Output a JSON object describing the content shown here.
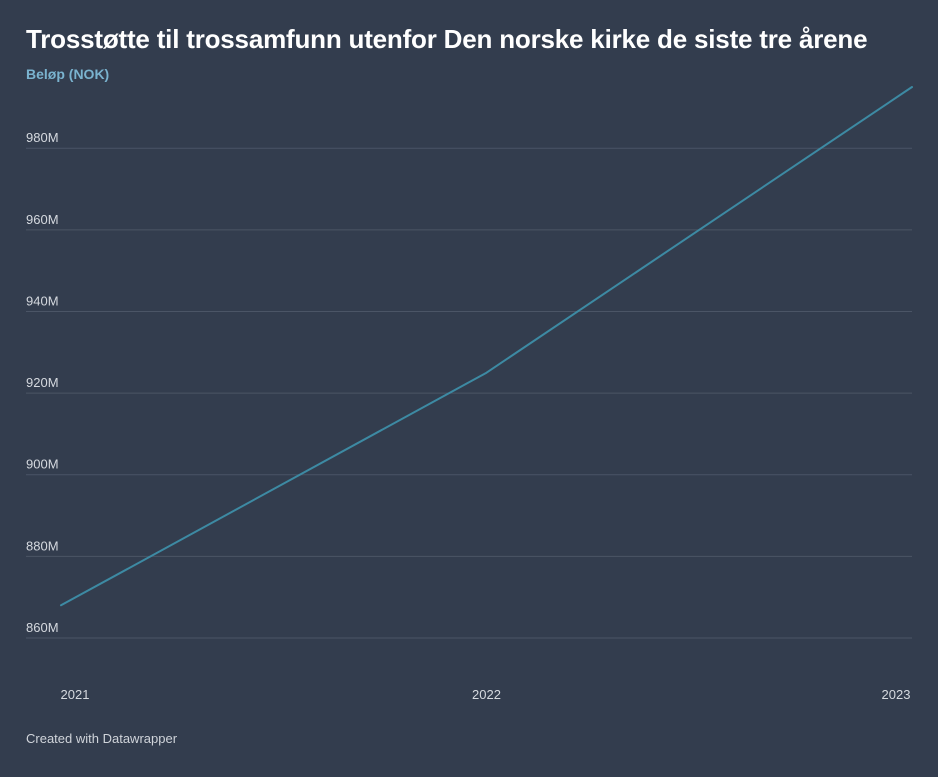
{
  "chart_data": {
    "type": "line",
    "title": "Trosstøtte til trossamfunn utenfor Den norske kirke de siste tre årene",
    "ylabel": "Beløp (NOK)",
    "xlabel": "",
    "x": [
      "2021",
      "2022",
      "2023"
    ],
    "series": [
      {
        "values": [
          868000000,
          925000000,
          995000000
        ]
      }
    ],
    "ylim": [
      860000000,
      995000000
    ],
    "yticks": [
      860000000,
      880000000,
      900000000,
      920000000,
      940000000,
      960000000,
      980000000
    ],
    "ytick_labels": [
      "860M",
      "880M",
      "900M",
      "920M",
      "940M",
      "960M",
      "980M"
    ],
    "grid": true,
    "line_color": "#3d8aa3"
  },
  "footer": {
    "credit": "Created with Datawrapper"
  }
}
